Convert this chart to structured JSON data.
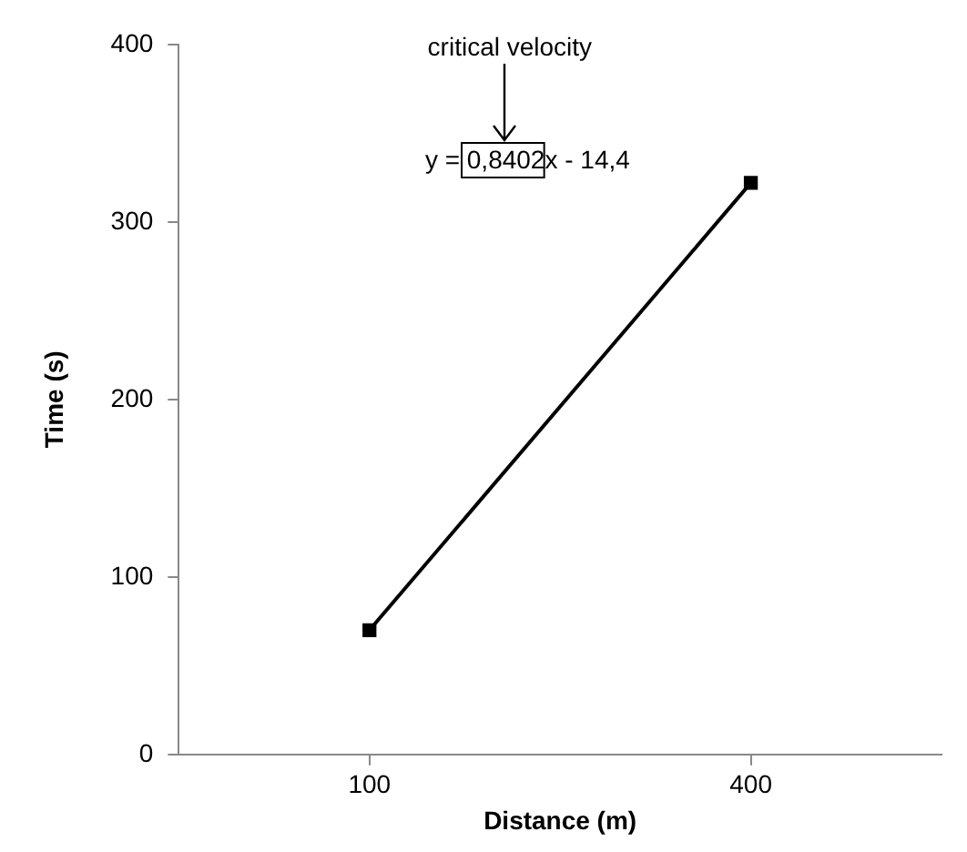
{
  "chart_data": {
    "type": "line",
    "xlabel": "Distance (m)",
    "ylabel": "Time (s)",
    "x": [
      100,
      400
    ],
    "xlim": [
      -50,
      550
    ],
    "xticks": [
      100,
      400
    ],
    "series": [
      {
        "color": "#000000",
        "values": [
          70,
          322
        ]
      }
    ],
    "ylim": [
      0,
      400
    ],
    "yticks": [
      0,
      100,
      200,
      300,
      400
    ],
    "grid": false,
    "legend": false,
    "marker": "square",
    "line_style": "solid",
    "annotations": [
      "critical velocity",
      "y = 0,8402x - 14,4"
    ]
  }
}
